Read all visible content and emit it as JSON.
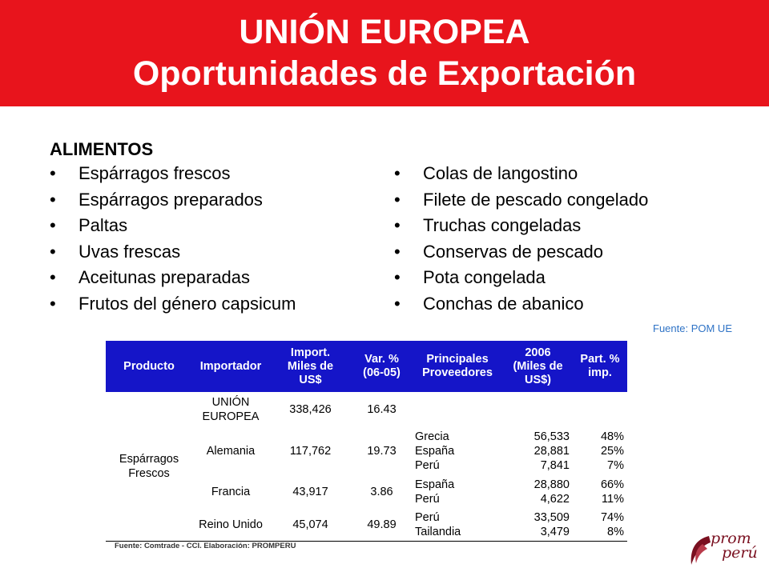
{
  "title": {
    "line1": "UNIÓN EUROPEA",
    "line2": "Oportunidades de Exportación"
  },
  "section": {
    "heading": "ALIMENTOS"
  },
  "bullet_symbol": "•",
  "left_items": [
    "Espárragos frescos",
    "Espárragos preparados",
    "Paltas",
    "Uvas frescas",
    "Aceitunas preparadas",
    "Frutos del género capsicum"
  ],
  "right_items": [
    "Colas de langostino",
    "Filete de pescado congelado",
    "Truchas congeladas",
    "Conservas de pescado",
    "Pota congelada",
    "Conchas de abanico"
  ],
  "source_top": "Fuente: POM UE",
  "table": {
    "headers": {
      "producto": "Producto",
      "importador": "Importador",
      "import_line1": "Import.",
      "import_line2": "Miles de",
      "import_line3": "US$",
      "var_line1": "Var. %",
      "var_line2": "(06-05)",
      "prov_line1": "Principales",
      "prov_line2": "Proveedores",
      "y2006_line1": "2006",
      "y2006_line2": "(Miles de",
      "y2006_line3": "US$)",
      "part_line1": "Part. %",
      "part_line2": "imp."
    },
    "product_line1": "Espárragos",
    "product_line2": "Frescos",
    "rows": [
      {
        "importer_line1": "UNIÓN",
        "importer_line2": "EUROPEA",
        "imports": "338,426",
        "variation": "16.43",
        "suppliers": []
      },
      {
        "importer_line1": "Alemania",
        "imports": "117,762",
        "variation": "19.73",
        "suppliers": [
          {
            "name": "Grecia",
            "value": "56,533",
            "share": "48%"
          },
          {
            "name": "España",
            "value": "28,881",
            "share": "25%"
          },
          {
            "name": "Perú",
            "value": "7,841",
            "share": "7%"
          }
        ]
      },
      {
        "importer_line1": "Francia",
        "imports": "43,917",
        "variation": "3.86",
        "suppliers": [
          {
            "name": "España",
            "value": "28,880",
            "share": "66%"
          },
          {
            "name": "Perú",
            "value": "4,622",
            "share": "11%"
          }
        ]
      },
      {
        "importer_line1": "Reino Unido",
        "imports": "45,074",
        "variation": "49.89",
        "suppliers": [
          {
            "name": "Perú",
            "value": "33,509",
            "share": "74%"
          },
          {
            "name": "Tailandia",
            "value": "3,479",
            "share": "8%"
          }
        ]
      }
    ]
  },
  "source_bottom": "Fuente: Comtrade - CCI.  Elaboración: PROMPERU",
  "logo": {
    "line1": "prom",
    "line2": "perú",
    "color": "#7a1020"
  },
  "colors": {
    "banner": "#e8141c",
    "table_header": "#1515c8",
    "source_link": "#2f73c6"
  }
}
